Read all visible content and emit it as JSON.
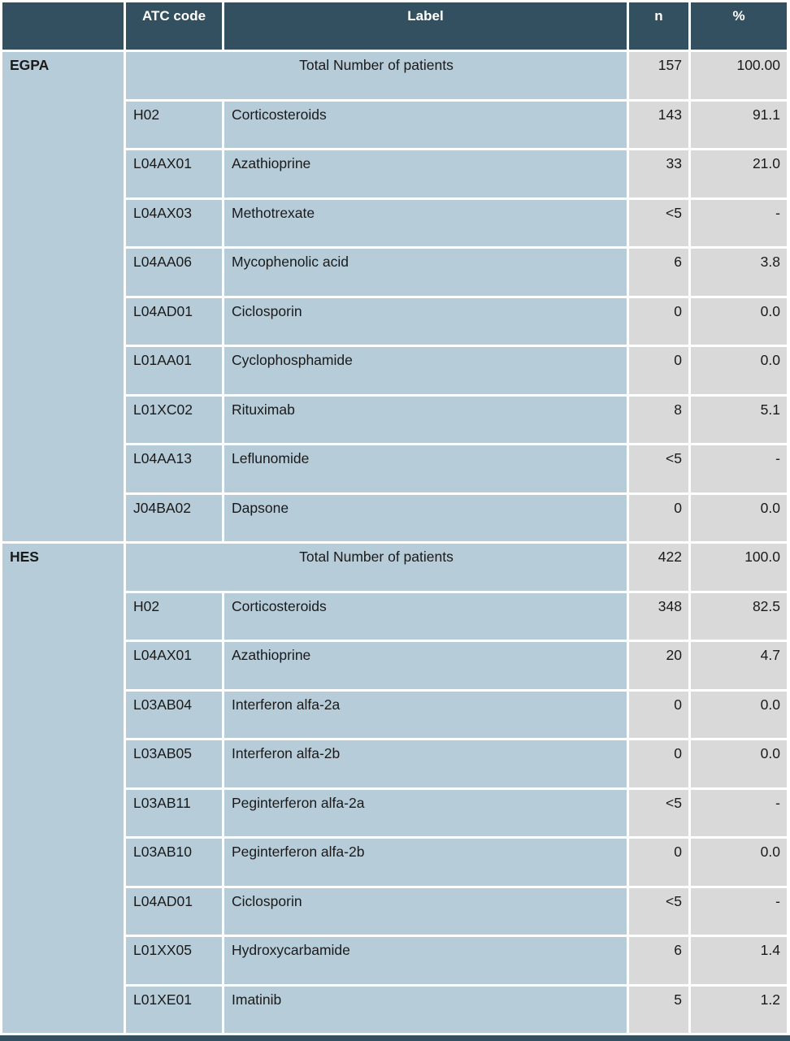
{
  "table": {
    "headers": {
      "group": "",
      "atc": "ATC code",
      "label": "Label",
      "n": "n",
      "pct": "%"
    },
    "sections": [
      {
        "group": "EGPA",
        "total": {
          "label": "Total Number of patients",
          "n": "157",
          "pct": "100.00"
        },
        "rows": [
          {
            "atc": "H02",
            "label": "Corticosteroids",
            "n": "143",
            "pct": "91.1"
          },
          {
            "atc": "L04AX01",
            "label": "Azathioprine",
            "n": "33",
            "pct": "21.0"
          },
          {
            "atc": "L04AX03",
            "label": "Methotrexate",
            "n": "<5",
            "pct": "-"
          },
          {
            "atc": "L04AA06",
            "label": "Mycophenolic acid",
            "n": "6",
            "pct": "3.8"
          },
          {
            "atc": "L04AD01",
            "label": "Ciclosporin",
            "n": "0",
            "pct": "0.0"
          },
          {
            "atc": "L01AA01",
            "label": "Cyclophosphamide",
            "n": "0",
            "pct": "0.0"
          },
          {
            "atc": "L01XC02",
            "label": "Rituximab",
            "n": "8",
            "pct": "5.1"
          },
          {
            "atc": "L04AA13",
            "label": "Leflunomide",
            "n": "<5",
            "pct": "-"
          },
          {
            "atc": "J04BA02",
            "label": "Dapsone",
            "n": "0",
            "pct": "0.0"
          }
        ]
      },
      {
        "group": "HES",
        "total": {
          "label": "Total Number of patients",
          "n": "422",
          "pct": "100.0"
        },
        "rows": [
          {
            "atc": "H02",
            "label": "Corticosteroids",
            "n": "348",
            "pct": "82.5"
          },
          {
            "atc": "L04AX01",
            "label": "Azathioprine",
            "n": "20",
            "pct": "4.7"
          },
          {
            "atc": "L03AB04",
            "label": "Interferon alfa-2a",
            "n": "0",
            "pct": "0.0"
          },
          {
            "atc": "L03AB05",
            "label": "Interferon alfa-2b",
            "n": "0",
            "pct": "0.0"
          },
          {
            "atc": "L03AB11",
            "label": "Peginterferon alfa-2a",
            "n": "<5",
            "pct": "-"
          },
          {
            "atc": "L03AB10",
            "label": "Peginterferon alfa-2b",
            "n": "0",
            "pct": "0.0"
          },
          {
            "atc": "L04AD01",
            "label": "Ciclosporin",
            "n": "<5",
            "pct": "-"
          },
          {
            "atc": "L01XX05",
            "label": "Hydroxycarbamide",
            "n": "6",
            "pct": "1.4"
          },
          {
            "atc": "L01XE01",
            "label": "Imatinib",
            "n": "5",
            "pct": "1.2"
          }
        ]
      }
    ],
    "colors": {
      "header_bg": "#32505F",
      "cell_blue": "#B7CCD9",
      "cell_gray": "#D9D9D9",
      "border": "#FFFFFF",
      "header_text": "#FFFFFF",
      "cell_text": "#1A1A1A"
    }
  }
}
